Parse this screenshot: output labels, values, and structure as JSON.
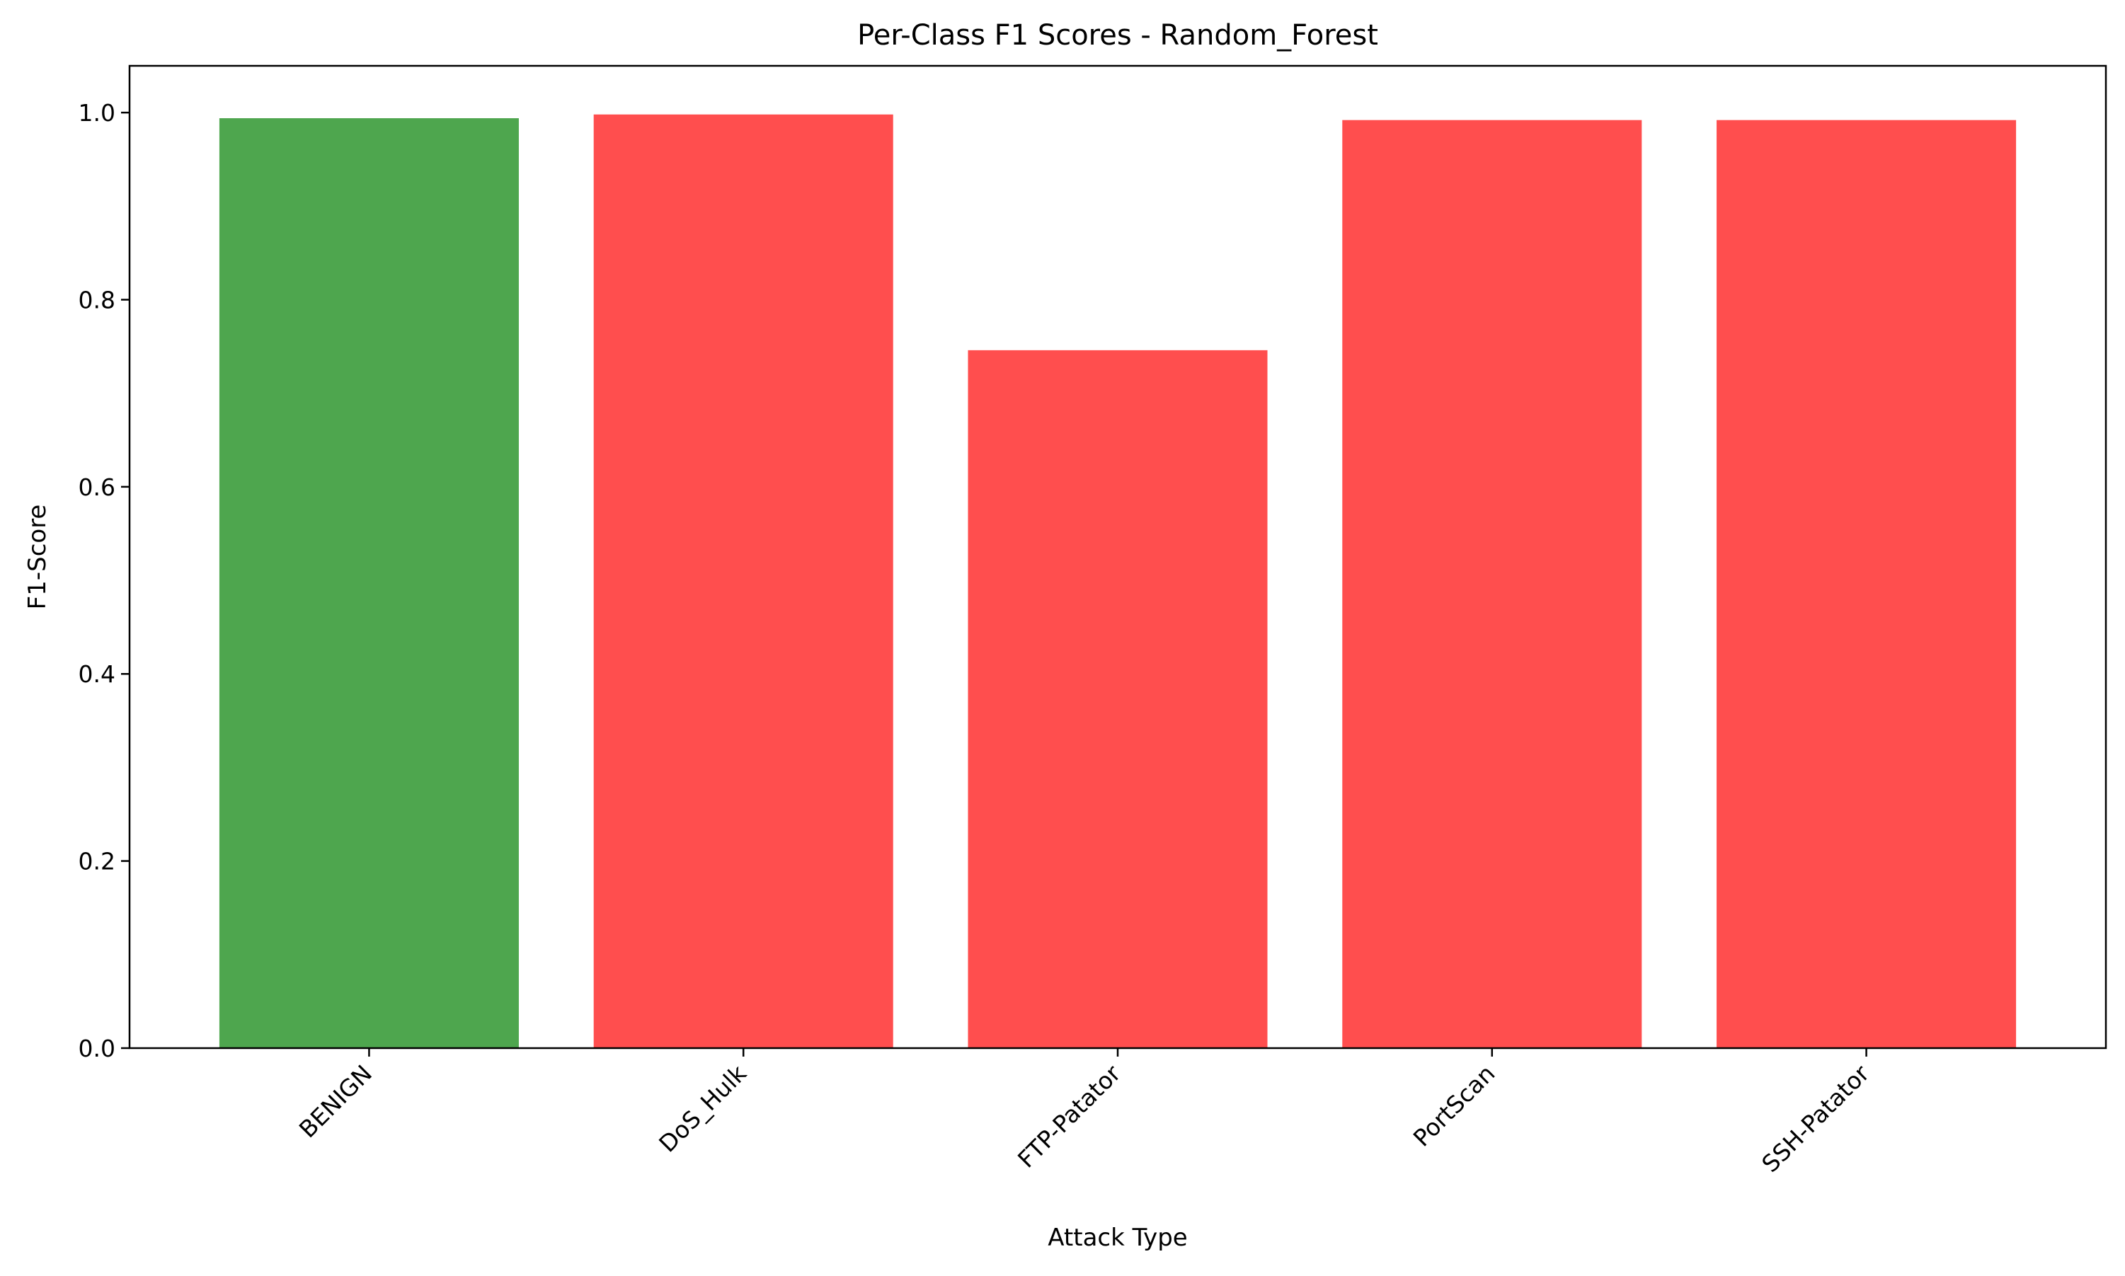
{
  "chart_data": {
    "type": "bar",
    "title": "Per-Class F1 Scores - Random_Forest",
    "xlabel": "Attack Type",
    "ylabel": "F1-Score",
    "categories": [
      "BENIGN",
      "DoS_Hulk",
      "FTP-Patator",
      "PortScan",
      "SSH-Patator"
    ],
    "values": [
      0.994,
      0.998,
      0.746,
      0.992,
      0.992
    ],
    "bar_colors": [
      "#4ea64e",
      "#ff4e4e",
      "#ff4e4e",
      "#ff4e4e",
      "#ff4e4e"
    ],
    "ylim": [
      0,
      1.05
    ],
    "yticks": [
      "0.0",
      "0.2",
      "0.4",
      "0.6",
      "0.8",
      "1.0"
    ],
    "grid": false,
    "legend": "none"
  }
}
